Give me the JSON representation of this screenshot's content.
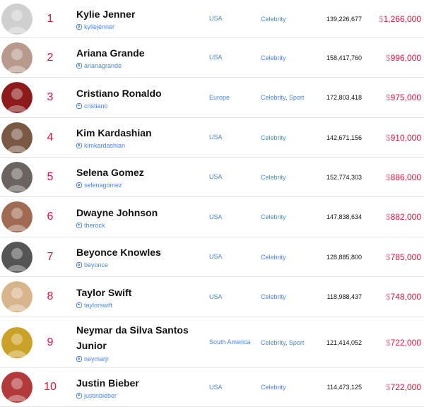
{
  "rows": [
    {
      "rank": "1",
      "name": "Kylie Jenner",
      "handle": "kyliejenner",
      "country": "USA",
      "categories": [
        "Celebrity"
      ],
      "followers": "139,226,677",
      "currency": "$",
      "price": "1,266,000",
      "avatar_color": "#cfcfcf"
    },
    {
      "rank": "2",
      "name": "Ariana Grande",
      "handle": "arianagrande",
      "country": "USA",
      "categories": [
        "Celebrity"
      ],
      "followers": "158,417,760",
      "currency": "$",
      "price": "996,000",
      "avatar_color": "#b79a8c"
    },
    {
      "rank": "3",
      "name": "Cristiano Ronaldo",
      "handle": "cristiano",
      "country": "Europe",
      "categories": [
        "Celebrity",
        "Sport"
      ],
      "followers": "172,803,418",
      "currency": "$",
      "price": "975,000",
      "avatar_color": "#8e1b1b"
    },
    {
      "rank": "4",
      "name": "Kim Kardashian",
      "handle": "kimkardashian",
      "country": "USA",
      "categories": [
        "Celebrity"
      ],
      "followers": "142,671,156",
      "currency": "$",
      "price": "910,000",
      "avatar_color": "#7a5844"
    },
    {
      "rank": "5",
      "name": "Selena Gomez",
      "handle": "selenagomez",
      "country": "USA",
      "categories": [
        "Celebrity"
      ],
      "followers": "152,774,303",
      "currency": "$",
      "price": "886,000",
      "avatar_color": "#6b6360"
    },
    {
      "rank": "6",
      "name": "Dwayne Johnson",
      "handle": "therock",
      "country": "USA",
      "categories": [
        "Celebrity"
      ],
      "followers": "147,838,634",
      "currency": "$",
      "price": "882,000",
      "avatar_color": "#a06b52"
    },
    {
      "rank": "7",
      "name": "Beyonce Knowles",
      "handle": "beyonce",
      "country": "USA",
      "categories": [
        "Celebrity"
      ],
      "followers": "128,885,800",
      "currency": "$",
      "price": "785,000",
      "avatar_color": "#555555"
    },
    {
      "rank": "8",
      "name": "Taylor Swift",
      "handle": "taylorswift",
      "country": "USA",
      "categories": [
        "Celebrity"
      ],
      "followers": "118,988,437",
      "currency": "$",
      "price": "748,000",
      "avatar_color": "#d8b48a"
    },
    {
      "rank": "9",
      "name": "Neymar da Silva Santos Junior",
      "handle": "neymarjr",
      "country": "South America",
      "categories": [
        "Celebrity",
        "Sport"
      ],
      "followers": "121,414,052",
      "currency": "$",
      "price": "722,000",
      "avatar_color": "#c9a227"
    },
    {
      "rank": "10",
      "name": "Justin Bieber",
      "handle": "justinbieber",
      "country": "USA",
      "categories": [
        "Celebrity"
      ],
      "followers": "114,473,125",
      "currency": "$",
      "price": "722,000",
      "avatar_color": "#b23a3a"
    }
  ]
}
